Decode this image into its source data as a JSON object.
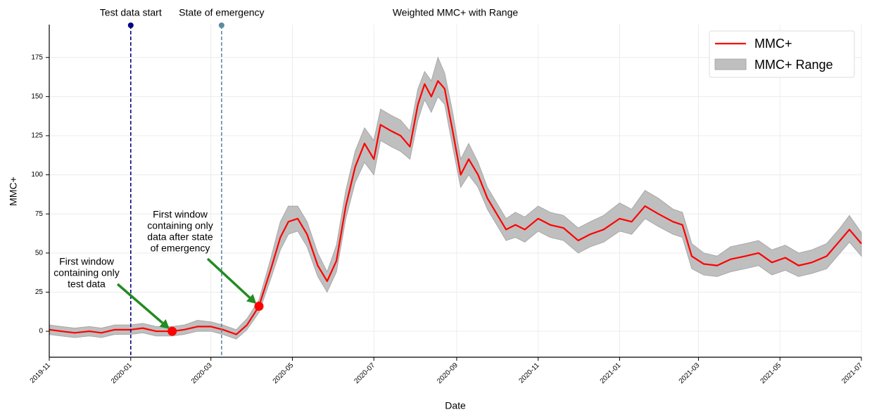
{
  "chart_data": {
    "type": "line",
    "title": "Weighted MMC+ with Range",
    "xlabel": "Date",
    "ylabel": "MMC+",
    "x": [
      "2019-11-01",
      "2019-11-10",
      "2019-11-20",
      "2019-12-01",
      "2019-12-10",
      "2019-12-20",
      "2020-01-01",
      "2020-01-10",
      "2020-01-20",
      "2020-02-01",
      "2020-02-10",
      "2020-02-20",
      "2020-03-01",
      "2020-03-10",
      "2020-03-20",
      "2020-03-28",
      "2020-04-06",
      "2020-04-15",
      "2020-04-22",
      "2020-04-28",
      "2020-05-05",
      "2020-05-12",
      "2020-05-20",
      "2020-05-27",
      "2020-06-03",
      "2020-06-10",
      "2020-06-17",
      "2020-06-24",
      "2020-07-01",
      "2020-07-06",
      "2020-07-14",
      "2020-07-21",
      "2020-07-28",
      "2020-08-03",
      "2020-08-08",
      "2020-08-13",
      "2020-08-18",
      "2020-08-23",
      "2020-08-29",
      "2020-09-04",
      "2020-09-10",
      "2020-09-17",
      "2020-09-24",
      "2020-10-01",
      "2020-10-08",
      "2020-10-15",
      "2020-10-22",
      "2020-11-01",
      "2020-11-10",
      "2020-11-20",
      "2020-12-01",
      "2020-12-10",
      "2020-12-20",
      "2021-01-01",
      "2021-01-10",
      "2021-01-20",
      "2021-01-30",
      "2021-02-10",
      "2021-02-17",
      "2021-02-24",
      "2021-03-05",
      "2021-03-15",
      "2021-03-25",
      "2021-04-05",
      "2021-04-15",
      "2021-04-25",
      "2021-05-05",
      "2021-05-15",
      "2021-05-25",
      "2021-06-05",
      "2021-06-15",
      "2021-06-22",
      "2021-07-01"
    ],
    "series": [
      {
        "name": "MMC+",
        "color": "#ff0000",
        "values": [
          1,
          0,
          -1,
          0,
          -1,
          1,
          1,
          2,
          0,
          0,
          1,
          3,
          3,
          1,
          -2,
          4,
          16,
          40,
          60,
          70,
          72,
          62,
          42,
          32,
          45,
          80,
          105,
          120,
          110,
          132,
          128,
          125,
          118,
          145,
          158,
          150,
          160,
          155,
          128,
          100,
          110,
          100,
          85,
          75,
          65,
          68,
          65,
          72,
          68,
          66,
          58,
          62,
          65,
          72,
          70,
          80,
          75,
          70,
          68,
          48,
          43,
          42,
          46,
          48,
          50,
          44,
          47,
          42,
          44,
          48,
          58,
          65,
          56
        ]
      }
    ],
    "range": {
      "name": "MMC+ Range",
      "color": "#bfbfbf",
      "lower": [
        -2,
        -3,
        -4,
        -3,
        -4,
        -2,
        -2,
        -1,
        -3,
        -3,
        -2,
        0,
        0,
        -2,
        -5,
        1,
        12,
        34,
        52,
        62,
        64,
        54,
        35,
        25,
        38,
        72,
        95,
        108,
        100,
        122,
        118,
        115,
        110,
        135,
        148,
        140,
        150,
        145,
        118,
        92,
        100,
        92,
        78,
        68,
        58,
        60,
        57,
        64,
        60,
        58,
        50,
        54,
        57,
        64,
        62,
        72,
        67,
        62,
        60,
        40,
        36,
        35,
        38,
        40,
        42,
        36,
        39,
        35,
        37,
        40,
        50,
        57,
        48
      ],
      "upper": [
        4,
        3,
        2,
        3,
        2,
        4,
        4,
        5,
        3,
        3,
        4,
        7,
        6,
        4,
        1,
        8,
        20,
        47,
        70,
        80,
        80,
        70,
        50,
        38,
        55,
        90,
        115,
        130,
        122,
        142,
        138,
        135,
        128,
        155,
        166,
        160,
        175,
        165,
        140,
        110,
        120,
        108,
        92,
        82,
        72,
        76,
        73,
        80,
        76,
        74,
        66,
        70,
        74,
        82,
        78,
        90,
        85,
        78,
        76,
        56,
        50,
        48,
        54,
        56,
        58,
        52,
        55,
        50,
        52,
        56,
        66,
        74,
        63
      ]
    },
    "xlim": [
      "2019-11",
      "2021-07"
    ],
    "xticks": [
      "2019-11",
      "2020-01",
      "2020-03",
      "2020-05",
      "2020-07",
      "2020-09",
      "2020-11",
      "2021-01",
      "2021-03",
      "2021-05",
      "2021-07"
    ],
    "ylim": [
      -16.6,
      196
    ],
    "yticks": [
      0,
      25,
      50,
      75,
      100,
      125,
      150,
      175
    ],
    "grid": true,
    "legend": "upper right",
    "vlines": [
      {
        "x": "2020-01-01",
        "label": "Test data start",
        "color": "#000080"
      },
      {
        "x": "2020-03-09",
        "label": "State of emergency",
        "color": "#5f8aa0"
      }
    ],
    "annotations": [
      {
        "lines": [
          "First window",
          "containing only",
          "test data"
        ],
        "x": "2020-02-01",
        "y": 0
      },
      {
        "lines": [
          "First window",
          "containing only",
          "data after state",
          "of emergency"
        ],
        "x": "2020-04-06",
        "y": 16
      }
    ],
    "arrow_color": "#228b22"
  }
}
